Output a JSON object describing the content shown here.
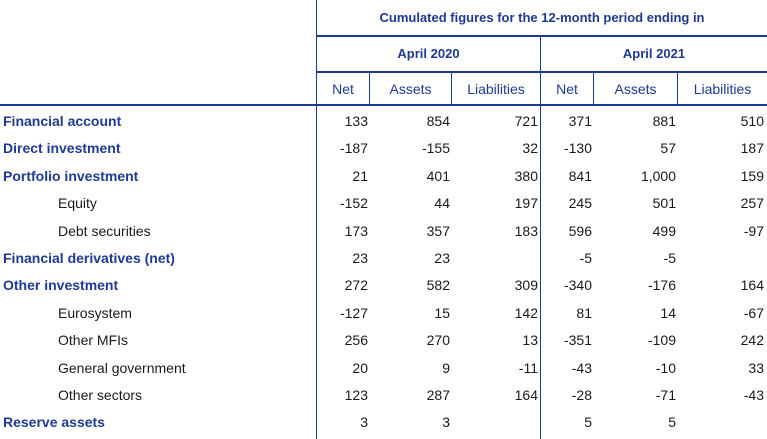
{
  "header": {
    "title": "Cumulated figures for the 12-month period ending in",
    "period1": "April 2020",
    "period2": "April 2021",
    "columns": [
      "Net",
      "Assets",
      "Liabilities",
      "Net",
      "Assets",
      "Liabilities"
    ]
  },
  "rows": [
    {
      "label": "Financial account",
      "bold": true,
      "values": [
        "133",
        "854",
        "721",
        "371",
        "881",
        "510"
      ]
    },
    {
      "label": "Direct investment",
      "bold": true,
      "values": [
        "-187",
        "-155",
        "32",
        "-130",
        "57",
        "187"
      ]
    },
    {
      "label": "Portfolio investment",
      "bold": true,
      "values": [
        "21",
        "401",
        "380",
        "841",
        "1,000",
        "159"
      ]
    },
    {
      "label": "Equity",
      "bold": false,
      "values": [
        "-152",
        "44",
        "197",
        "245",
        "501",
        "257"
      ]
    },
    {
      "label": "Debt securities",
      "bold": false,
      "values": [
        "173",
        "357",
        "183",
        "596",
        "499",
        "-97"
      ]
    },
    {
      "label": "Financial derivatives (net)",
      "bold": true,
      "values": [
        "23",
        "23",
        "",
        "-5",
        "-5",
        ""
      ]
    },
    {
      "label": "Other investment",
      "bold": true,
      "values": [
        "272",
        "582",
        "309",
        "-340",
        "-176",
        "164"
      ]
    },
    {
      "label": "Eurosystem",
      "bold": false,
      "values": [
        "-127",
        "15",
        "142",
        "81",
        "14",
        "-67"
      ]
    },
    {
      "label": "Other MFIs",
      "bold": false,
      "values": [
        "256",
        "270",
        "13",
        "-351",
        "-109",
        "242"
      ]
    },
    {
      "label": "General government",
      "bold": false,
      "values": [
        "20",
        "9",
        "-11",
        "-43",
        "-10",
        "33"
      ]
    },
    {
      "label": "Other sectors",
      "bold": false,
      "values": [
        "123",
        "287",
        "164",
        "-28",
        "-71",
        "-43"
      ]
    },
    {
      "label": "Reserve assets",
      "bold": true,
      "values": [
        "3",
        "3",
        "",
        "5",
        "5",
        ""
      ]
    }
  ]
}
